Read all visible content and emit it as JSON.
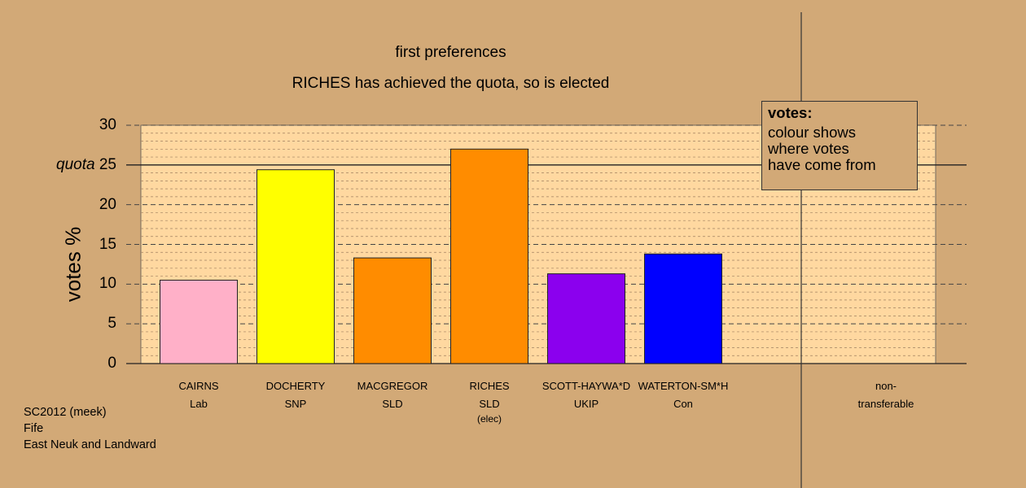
{
  "chart_data": {
    "type": "bar",
    "title": "first preferences",
    "subtitle": "RICHES has achieved the quota, so is elected",
    "ylabel": "votes %",
    "ylim": [
      0,
      30
    ],
    "yticks": [
      0,
      5,
      10,
      15,
      20,
      25,
      30
    ],
    "quota": 25,
    "quota_label": "quota",
    "grid": "dashed every 1%",
    "categories": [
      {
        "name": "CAIRNS",
        "party": "Lab",
        "note": "",
        "value": 10.5,
        "color": "#FFB0C8"
      },
      {
        "name": "DOCHERTY",
        "party": "SNP",
        "note": "",
        "value": 24.4,
        "color": "#FFFF00"
      },
      {
        "name": "MACGREGOR",
        "party": "SLD",
        "note": "",
        "value": 13.3,
        "color": "#FF8C00"
      },
      {
        "name": "RICHES",
        "party": "SLD",
        "note": "(elec)",
        "value": 27.0,
        "color": "#FF8C00"
      },
      {
        "name": "SCOTT-HAYWA*D",
        "party": "UKIP",
        "note": "",
        "value": 11.3,
        "color": "#8B00EE"
      },
      {
        "name": "WATERTON-SM*H",
        "party": "Con",
        "note": "",
        "value": 13.8,
        "color": "#0000FF"
      }
    ],
    "nontransferable": {
      "line1": "non-",
      "line2": "transferable",
      "value": 0
    },
    "legend": {
      "title": "votes:",
      "lines": [
        "colour shows",
        "where votes",
        "have come from"
      ]
    },
    "colors": {
      "background": "#D2A977",
      "plot_area": "#FFD8A0"
    }
  },
  "footer": {
    "line1": "SC2012 (meek)",
    "line2": "Fife",
    "line3": "East Neuk and Landward"
  }
}
